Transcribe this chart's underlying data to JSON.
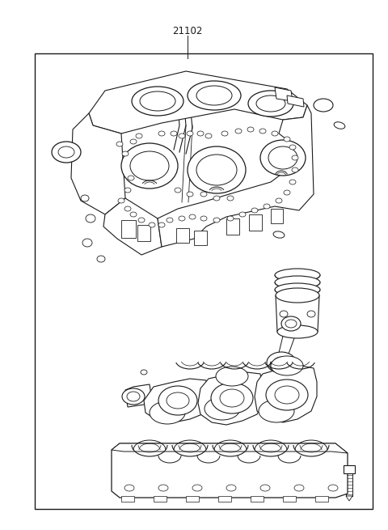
{
  "title": "21102",
  "bg": "#ffffff",
  "lc": "#1a1a1a",
  "fig_w": 4.8,
  "fig_h": 6.55,
  "dpi": 100,
  "border": [
    0.09,
    0.04,
    0.96,
    0.9
  ]
}
